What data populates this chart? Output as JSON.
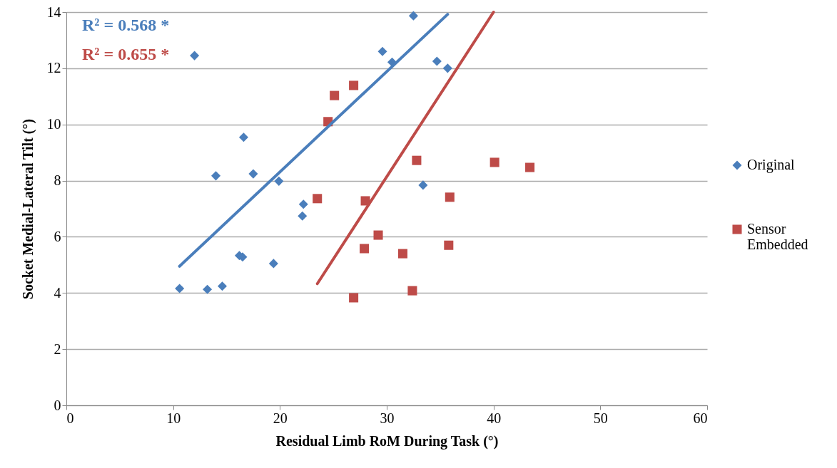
{
  "chart_data": {
    "type": "scatter",
    "xlabel": "Residual Limb RoM During Task (°)",
    "ylabel": "Socket Medial-Lateral Tilt  (°)",
    "xlim": [
      0,
      60
    ],
    "xticks": [
      0,
      10,
      20,
      30,
      40,
      50,
      60
    ],
    "ylim": [
      0,
      14
    ],
    "yticks": [
      0,
      2,
      4,
      6,
      8,
      10,
      12,
      14
    ],
    "grid": "y",
    "legend": "right",
    "annotations": [
      "R² = 0.568 *",
      "R² = 0.655 *"
    ],
    "series": [
      {
        "name": "Original",
        "color": "#4a7ebb",
        "marker": "diamond",
        "x": [
          10.6,
          12.0,
          13.2,
          14.6,
          14.0,
          16.6,
          16.2,
          16.5,
          17.5,
          19.4,
          19.9,
          22.2,
          22.1,
          32.5,
          29.6,
          30.5,
          34.7,
          35.7,
          33.4
        ],
        "values": [
          4.16,
          12.45,
          4.13,
          4.24,
          8.17,
          9.54,
          5.33,
          5.28,
          8.24,
          5.05,
          7.98,
          7.16,
          6.74,
          13.87,
          12.6,
          12.22,
          12.25,
          12.0,
          7.84
        ]
      },
      {
        "name": "Sensor Embedded",
        "color": "#be4b48",
        "marker": "square",
        "x": [
          25.1,
          26.9,
          24.5,
          32.8,
          40.1,
          43.4,
          23.5,
          28.0,
          35.9,
          29.2,
          27.9,
          31.5,
          35.8,
          26.9,
          32.4
        ],
        "values": [
          11.03,
          11.39,
          10.1,
          8.72,
          8.65,
          8.47,
          7.36,
          7.28,
          7.41,
          6.06,
          5.58,
          5.4,
          5.7,
          3.83,
          4.08
        ]
      },
      {
        "type": "line",
        "color": "#4a7ebb",
        "x": [
          10.6,
          35.7
        ],
        "values": [
          4.95,
          13.92
        ]
      },
      {
        "type": "line",
        "color": "#be4b48",
        "x": [
          23.5,
          40.0
        ],
        "values": [
          4.33,
          14.0
        ]
      }
    ]
  }
}
